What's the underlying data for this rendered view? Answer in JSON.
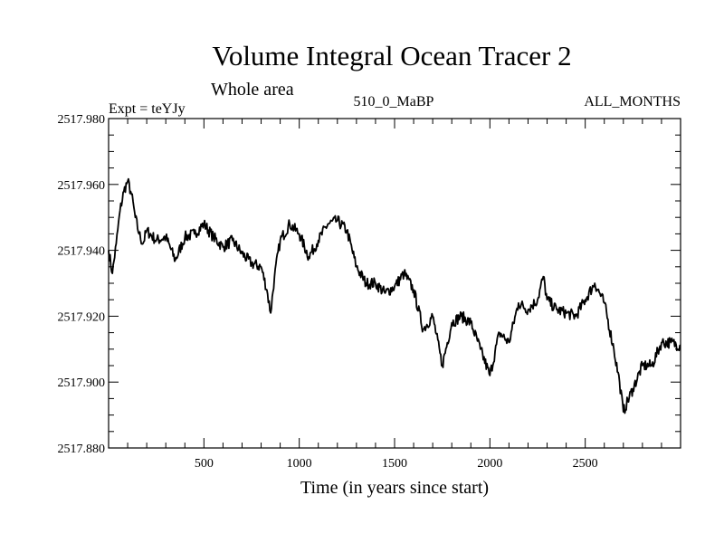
{
  "chart_data": {
    "type": "line",
    "title": "Volume Integral Ocean Tracer 2",
    "subtitle": "Whole area",
    "expt_label": "Expt = teYJy",
    "center_label": "510_0_MaBP",
    "right_label": "ALL_MONTHS",
    "xlabel": "Time (in years since start)",
    "ylabel": "",
    "xlim": [
      0,
      3000
    ],
    "ylim": [
      2517.88,
      2517.98
    ],
    "x_ticks": [
      500,
      1000,
      1500,
      2000,
      2500
    ],
    "y_ticks": [
      "2517.880",
      "2517.900",
      "2517.920",
      "2517.940",
      "2517.960",
      "2517.980"
    ],
    "grid": false,
    "line_color": "#000000",
    "series": [
      {
        "x": [
          0,
          20,
          40,
          60,
          80,
          100,
          120,
          140,
          160,
          180,
          200,
          250,
          300,
          350,
          400,
          450,
          500,
          550,
          600,
          650,
          700,
          750,
          800,
          830,
          850,
          870,
          900,
          950,
          1000,
          1050,
          1100,
          1150,
          1200,
          1250,
          1300,
          1350,
          1400,
          1450,
          1500,
          1550,
          1600,
          1650,
          1700,
          1750,
          1800,
          1850,
          1900,
          1950,
          2000,
          2050,
          2100,
          2150,
          2200,
          2250,
          2280,
          2300,
          2350,
          2400,
          2450,
          2500,
          2550,
          2600,
          2650,
          2680,
          2700,
          2750,
          2800,
          2850,
          2900,
          2950,
          3000
        ],
        "y": [
          2517.94,
          2517.933,
          2517.942,
          2517.952,
          2517.958,
          2517.961,
          2517.957,
          2517.95,
          2517.945,
          2517.942,
          2517.946,
          2517.943,
          2517.944,
          2517.937,
          2517.944,
          2517.945,
          2517.948,
          2517.944,
          2517.941,
          2517.943,
          2517.939,
          2517.936,
          2517.935,
          2517.928,
          2517.921,
          2517.932,
          2517.943,
          2517.948,
          2517.945,
          2517.938,
          2517.943,
          2517.948,
          2517.949,
          2517.946,
          2517.935,
          2517.93,
          2517.93,
          2517.927,
          2517.929,
          2517.933,
          2517.928,
          2517.916,
          2517.92,
          2517.905,
          2517.918,
          2517.92,
          2517.918,
          2517.91,
          2517.902,
          2517.915,
          2517.912,
          2517.924,
          2517.922,
          2517.925,
          2517.932,
          2517.925,
          2517.922,
          2517.921,
          2517.92,
          2517.925,
          2517.93,
          2517.924,
          2517.91,
          2517.9,
          2517.891,
          2517.898,
          2517.905,
          2517.905,
          2517.912,
          2517.912,
          2517.911
        ]
      }
    ]
  }
}
